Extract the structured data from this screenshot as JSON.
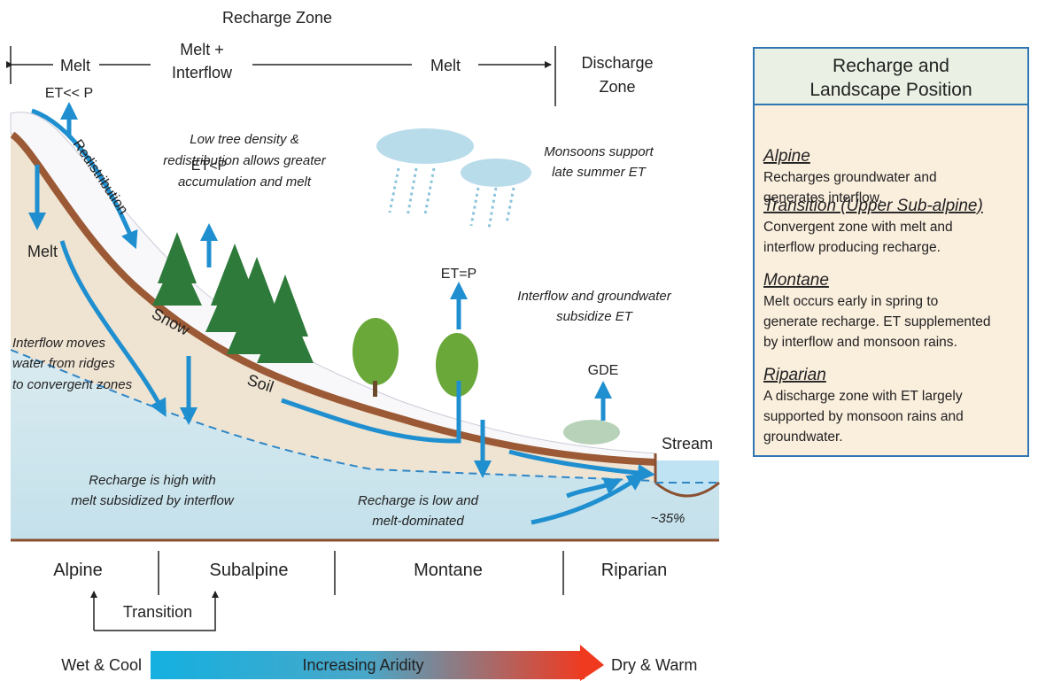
{
  "header": {
    "title": "Recharge Zone"
  },
  "zone_bar": {
    "melt_left": "Melt",
    "melt_interflow": [
      "Melt +",
      "Interflow"
    ],
    "melt_right": "Melt",
    "discharge": [
      "Discharge",
      "Zone"
    ]
  },
  "labels": {
    "et_alpine": "ET<< P",
    "redistribution": "Redistribution",
    "melt": "Melt",
    "et_subalpine": "ET<P",
    "snow": "Snow",
    "soil": "Soil",
    "et_montane": "ET=P",
    "gde": "GDE",
    "stream": "Stream",
    "percent": "~35%"
  },
  "annotations": {
    "tree_density": [
      "Low tree density &",
      "redistribution allows greater",
      "accumulation and melt"
    ],
    "monsoons": [
      "Monsoons support",
      "late summer ET"
    ],
    "interflow_gw": [
      "Interflow and groundwater",
      "subsidize ET"
    ],
    "interflow_moves": [
      "Interflow moves",
      "water from ridges",
      "to convergent zones"
    ],
    "recharge_high": [
      "Recharge is high with",
      "melt subsidized by interflow"
    ],
    "recharge_low": [
      "Recharge is low and",
      "melt-dominated"
    ]
  },
  "zones": {
    "alpine": "Alpine",
    "subalpine": "Subalpine",
    "montane": "Montane",
    "riparian": "Riparian",
    "transition": "Transition"
  },
  "aridity": {
    "left": "Wet & Cool",
    "middle": "Increasing Aridity",
    "right": "Dry & Warm"
  },
  "panel": {
    "title": [
      "Recharge and",
      "Landscape Position"
    ],
    "sections": [
      {
        "heading": "Alpine",
        "text": [
          "Recharges groundwater and",
          "generates interflow."
        ]
      },
      {
        "heading": "Transition (Upper Sub-alpine)",
        "text": [
          "Convergent zone with melt and",
          "interflow producing recharge."
        ]
      },
      {
        "heading": "Montane",
        "text": [
          "Melt occurs early in spring to",
          "generate recharge. ET supplemented",
          "by interflow and monsoon rains."
        ]
      },
      {
        "heading": "Riparian",
        "text": [
          "A discharge zone with ET largely",
          "supported by monsoon rains and",
          "groundwater."
        ]
      }
    ]
  }
}
